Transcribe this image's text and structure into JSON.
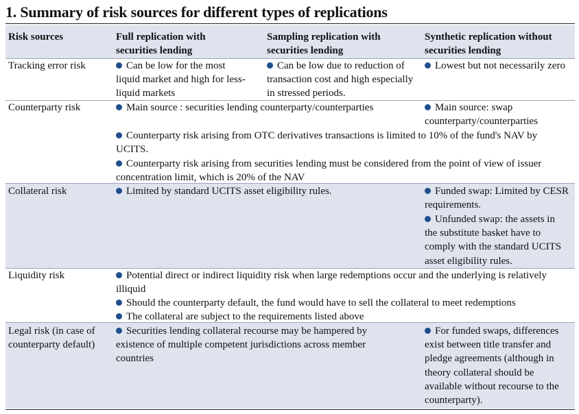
{
  "title": "1. Summary of risk sources for different types of replications",
  "headers": {
    "risk": "Risk sources",
    "full": "Full replication with securities lending",
    "sampling": "Sampling replication with securities lending",
    "synthetic": "Synthetic replication without securities lending"
  },
  "tracking": {
    "label": "Tracking error risk",
    "full": "Can be low for the most liquid market and high for less-liquid markets",
    "sampling": "Can be low due to reduction of transaction cost and high especially in stressed periods.",
    "synthetic": "Lowest but not necessarily zero"
  },
  "counterparty": {
    "label": "Counterparty risk",
    "b1": "Main source : securities lending counterparty/counterparties",
    "b1_synthetic": "Main source: swap counterparty/counterparties",
    "b2": "Counterparty risk arising from OTC derivatives transactions is limited to 10% of the fund's NAV by UCITS.",
    "b3": "Counterparty risk arising from securities lending must be considered from the point of view of issuer concentration limit, which is 20% of the NAV"
  },
  "collateral": {
    "label": "Collateral risk",
    "b1": "Limited by standard UCITS asset eligibility rules.",
    "synthetic_b1": "Funded swap: Limited by CESR requirements.",
    "synthetic_b2": "Unfunded swap: the assets in the substitute basket have to comply with the standard UCITS asset eligibility rules."
  },
  "liquidity": {
    "label": "Liquidity risk",
    "b1": "Potential direct or indirect liquidity risk when large redemptions occur and the underlying is relatively illiquid",
    "b2": "Should the counterparty default, the fund would have to sell the collateral to meet redemptions",
    "b3": "The collateral are subject to the requirements listed above"
  },
  "legal": {
    "label": "Legal risk (in case of counterparty default)",
    "b1": "Securities lending collateral recourse may be hampered by existence of multiple competent jurisdictions across member countries",
    "synthetic_b1": "For funded swaps, differences exist between title transfer and pledge agreements (although in theory collateral should be available without recourse to the counterparty)."
  },
  "colors": {
    "band": "#dfe3ee",
    "bullet": "#1f4e8c"
  }
}
